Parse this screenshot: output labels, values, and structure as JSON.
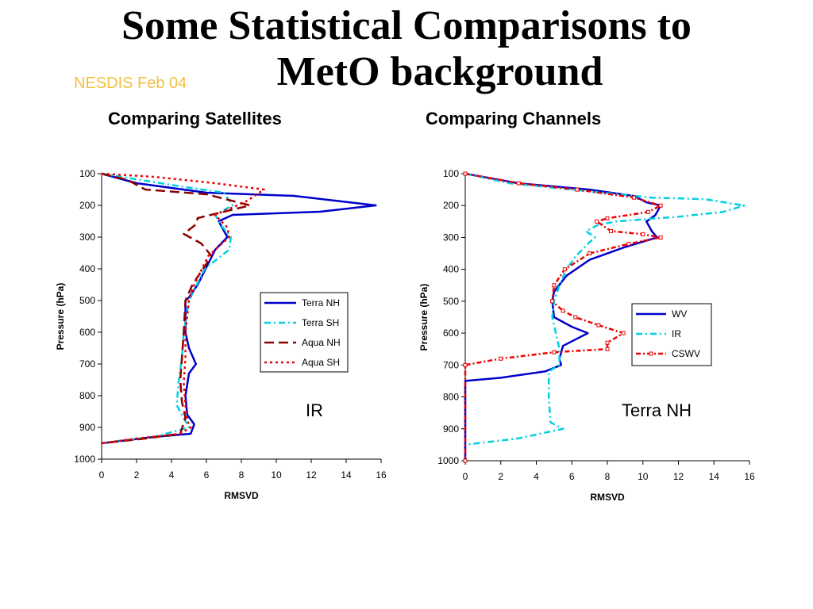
{
  "slide": {
    "title_line1": "Some Statistical Comparisons to",
    "title_line2": "MetO background",
    "org": "NESDIS Feb 04",
    "left_subtitle": "Comparing Satellites",
    "right_subtitle": "Comparing Channels"
  },
  "chart_data": [
    {
      "type": "line",
      "title": "",
      "xlabel": "RMSVD",
      "ylabel": "Pressure (hPa)",
      "xlim": [
        0,
        16
      ],
      "ylim": [
        100,
        1000
      ],
      "y_inverted": true,
      "x_ticks": [
        "0",
        "2",
        "4",
        "6",
        "8",
        "10",
        "12",
        "14",
        "16"
      ],
      "y_ticks": [
        "100",
        "200",
        "300",
        "400",
        "500",
        "600",
        "700",
        "800",
        "900",
        "1000"
      ],
      "grid": false,
      "legend_position": "right-middle",
      "annotation": "IR",
      "series": [
        {
          "name": "Terra NH",
          "color": "#0000cc",
          "dash": "solid",
          "marker": "none",
          "points": [
            [
              0,
              100
            ],
            [
              2,
              130
            ],
            [
              6,
              160
            ],
            [
              11,
              170
            ],
            [
              15.7,
              200
            ],
            [
              12.5,
              220
            ],
            [
              7.5,
              230
            ],
            [
              6.7,
              250
            ],
            [
              7.2,
              300
            ],
            [
              6.5,
              340
            ],
            [
              5.5,
              450
            ],
            [
              5,
              490
            ],
            [
              4.8,
              500
            ],
            [
              4.8,
              600
            ],
            [
              5,
              650
            ],
            [
              5.4,
              700
            ],
            [
              5,
              730
            ],
            [
              4.8,
              800
            ],
            [
              4.9,
              860
            ],
            [
              5.3,
              890
            ],
            [
              5.1,
              920
            ],
            [
              3,
              930
            ],
            [
              0,
              950
            ]
          ]
        },
        {
          "name": "Terra SH",
          "color": "#00d0e0",
          "dash": "8,4,2,4",
          "marker": "none",
          "points": [
            [
              0,
              100
            ],
            [
              4.5,
              140
            ],
            [
              7,
              160
            ],
            [
              7.5,
              200
            ],
            [
              6.5,
              230
            ],
            [
              6.8,
              260
            ],
            [
              7.4,
              300
            ],
            [
              7.3,
              340
            ],
            [
              5.9,
              400
            ],
            [
              5,
              500
            ],
            [
              4.7,
              600
            ],
            [
              4.6,
              680
            ],
            [
              4.4,
              760
            ],
            [
              4.3,
              830
            ],
            [
              4.7,
              870
            ],
            [
              5,
              900
            ],
            [
              3,
              930
            ],
            [
              0,
              950
            ]
          ]
        },
        {
          "name": "Aqua NH",
          "color": "#8b0000",
          "dash": "12,6",
          "marker": "none",
          "points": [
            [
              0,
              100
            ],
            [
              1.5,
              120
            ],
            [
              2.5,
              150
            ],
            [
              6,
              165
            ],
            [
              8.5,
              200
            ],
            [
              7,
              220
            ],
            [
              5.5,
              240
            ],
            [
              5.4,
              260
            ],
            [
              4.7,
              290
            ],
            [
              5.7,
              320
            ],
            [
              6.3,
              360
            ],
            [
              5.8,
              400
            ],
            [
              5.2,
              450
            ],
            [
              4.8,
              500
            ],
            [
              4.7,
              600
            ],
            [
              4.6,
              680
            ],
            [
              4.5,
              750
            ],
            [
              4.6,
              820
            ],
            [
              4.8,
              870
            ],
            [
              4.5,
              920
            ],
            [
              2.5,
              935
            ],
            [
              0,
              950
            ]
          ]
        },
        {
          "name": "Aqua SH",
          "color": "#ee0000",
          "dash": "3,4",
          "marker": "none",
          "points": [
            [
              0,
              100
            ],
            [
              3,
              110
            ],
            [
              6.5,
              130
            ],
            [
              9.3,
              150
            ],
            [
              8.2,
              190
            ],
            [
              6.5,
              230
            ],
            [
              7.2,
              270
            ],
            [
              7.3,
              300
            ],
            [
              6.1,
              360
            ],
            [
              5.3,
              450
            ],
            [
              5,
              500
            ],
            [
              4.8,
              600
            ],
            [
              4.8,
              680
            ],
            [
              4.7,
              760
            ],
            [
              4.8,
              830
            ],
            [
              4.9,
              880
            ],
            [
              5.1,
              900
            ],
            [
              4.5,
              920
            ],
            [
              2,
              935
            ],
            [
              0,
              950
            ]
          ]
        }
      ]
    },
    {
      "type": "line",
      "title": "",
      "xlabel": "RMSVD",
      "ylabel": "Pressure (hPa)",
      "xlim": [
        0,
        16
      ],
      "ylim": [
        100,
        1000
      ],
      "y_inverted": true,
      "x_ticks": [
        "0",
        "2",
        "4",
        "6",
        "8",
        "10",
        "12",
        "14",
        "16"
      ],
      "y_ticks": [
        "100",
        "200",
        "300",
        "400",
        "500",
        "600",
        "700",
        "800",
        "900",
        "1000"
      ],
      "grid": false,
      "legend_position": "right-middle",
      "annotation": "Terra NH",
      "series": [
        {
          "name": "WV",
          "color": "#0000cc",
          "dash": "solid",
          "marker": "none",
          "points": [
            [
              0,
              100
            ],
            [
              3,
              130
            ],
            [
              7,
              150
            ],
            [
              9.5,
              170
            ],
            [
              10.2,
              190
            ],
            [
              11,
              200
            ],
            [
              10.7,
              230
            ],
            [
              10.2,
              250
            ],
            [
              10.5,
              280
            ],
            [
              10.8,
              300
            ],
            [
              9,
              330
            ],
            [
              7,
              370
            ],
            [
              5.7,
              420
            ],
            [
              5,
              470
            ],
            [
              4.9,
              500
            ],
            [
              5,
              550
            ],
            [
              6,
              580
            ],
            [
              6.9,
              600
            ],
            [
              6.2,
              620
            ],
            [
              5.5,
              640
            ],
            [
              5.3,
              680
            ],
            [
              5.4,
              700
            ],
            [
              4.5,
              720
            ],
            [
              2,
              740
            ],
            [
              0,
              750
            ],
            [
              0,
              1000
            ]
          ]
        },
        {
          "name": "IR",
          "color": "#00d0e0",
          "dash": "8,4,2,4",
          "marker": "none",
          "points": [
            [
              0,
              100
            ],
            [
              2.5,
              130
            ],
            [
              6,
              150
            ],
            [
              10.5,
              175
            ],
            [
              13.5,
              180
            ],
            [
              15.7,
              200
            ],
            [
              14.5,
              220
            ],
            [
              12,
              235
            ],
            [
              8.5,
              250
            ],
            [
              7.5,
              260
            ],
            [
              6.8,
              280
            ],
            [
              7.3,
              300
            ],
            [
              6.9,
              320
            ],
            [
              6.2,
              360
            ],
            [
              5.7,
              400
            ],
            [
              5.3,
              450
            ],
            [
              5,
              500
            ],
            [
              4.9,
              550
            ],
            [
              5.1,
              600
            ],
            [
              5.3,
              650
            ],
            [
              5.3,
              700
            ],
            [
              4.7,
              720
            ],
            [
              4.7,
              800
            ],
            [
              4.8,
              880
            ],
            [
              5.5,
              900
            ],
            [
              3,
              930
            ],
            [
              0,
              950
            ]
          ]
        },
        {
          "name": "CSWV",
          "color": "#ee0000",
          "dash": "6,3,2,3",
          "marker": "square",
          "points": [
            [
              0,
              100
            ],
            [
              3,
              130
            ],
            [
              6.3,
              150
            ],
            [
              9.5,
              175
            ],
            [
              11,
              200
            ],
            [
              10.3,
              220
            ],
            [
              8,
              240
            ],
            [
              7.4,
              250
            ],
            [
              8.2,
              280
            ],
            [
              10,
              290
            ],
            [
              11,
              300
            ],
            [
              9.2,
              320
            ],
            [
              7,
              350
            ],
            [
              5.6,
              400
            ],
            [
              5,
              450
            ],
            [
              4.9,
              500
            ],
            [
              5.5,
              530
            ],
            [
              6.2,
              550
            ],
            [
              7.5,
              575
            ],
            [
              8.9,
              600
            ],
            [
              8,
              630
            ],
            [
              8,
              650
            ],
            [
              5,
              660
            ],
            [
              2,
              680
            ],
            [
              0,
              700
            ],
            [
              0,
              1000
            ]
          ]
        }
      ]
    }
  ]
}
